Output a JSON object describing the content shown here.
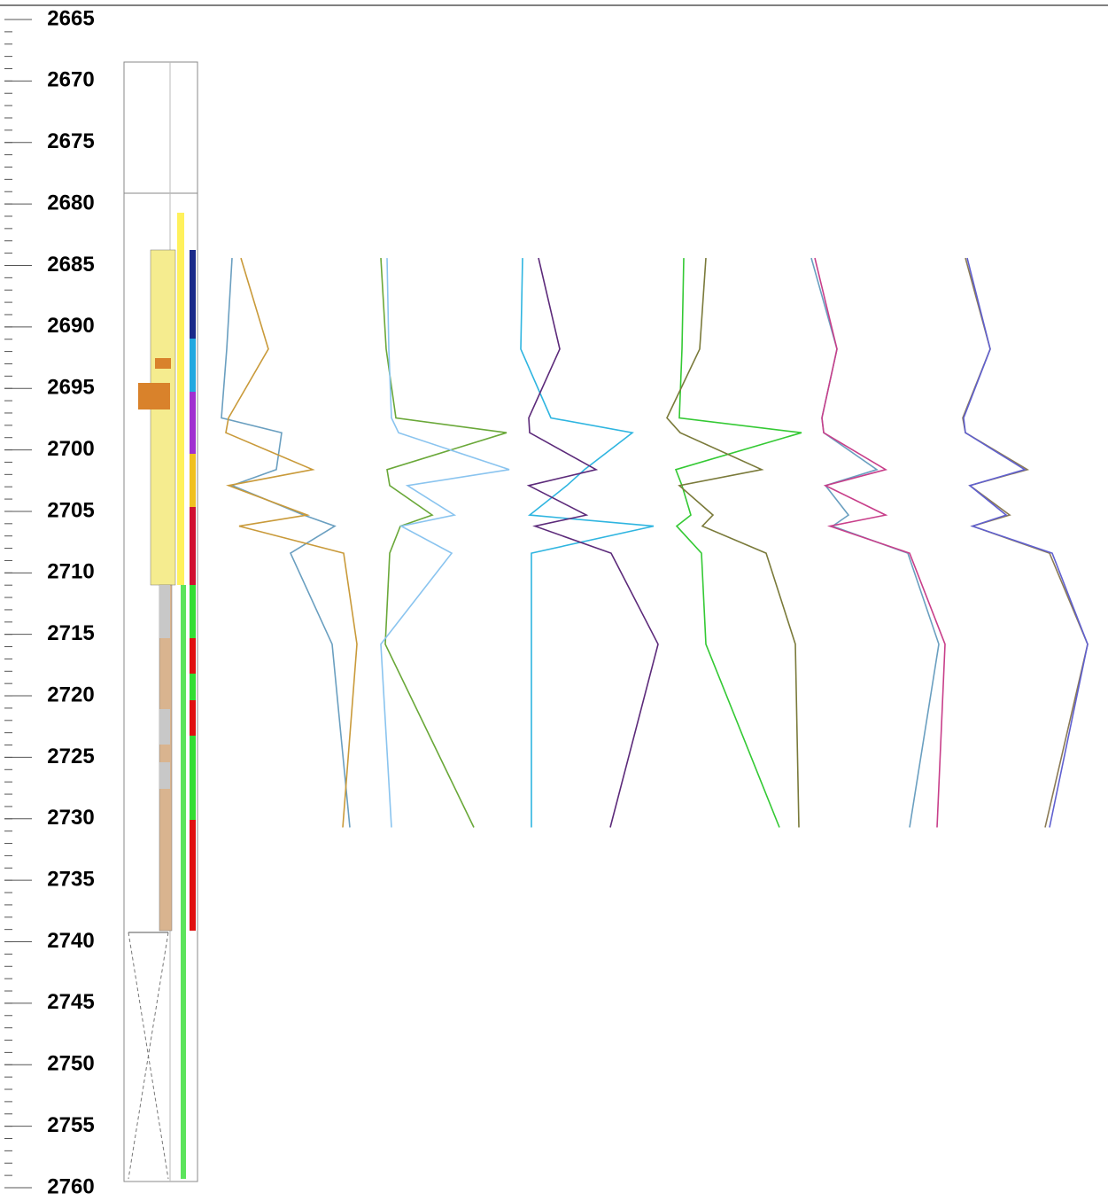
{
  "chart_data": {
    "type": "line",
    "ylim": [
      2665,
      2760
    ],
    "yticks": [
      2665,
      2670,
      2675,
      2680,
      2685,
      2690,
      2695,
      2700,
      2705,
      2710,
      2715,
      2720,
      2725,
      2730,
      2735,
      2740,
      2745,
      2750,
      2755,
      2760
    ],
    "yminor_step": 1,
    "y_inverted": true,
    "depths": [
      2684.4,
      2691.8,
      2697.4,
      2698.6,
      2701.6,
      2702.9,
      2705.3,
      2706.2,
      2708.4,
      2715.8,
      2730.7
    ],
    "panels": [
      {
        "xlim": [
          0,
          160
        ],
        "series": [
          {
            "color": "#6a9fc0",
            "values": [
              17,
              11,
              5,
              73,
              67,
              17,
              98,
              133,
              83,
              130,
              150
            ]
          },
          {
            "color": "#c99a3a",
            "values": [
              27,
              58,
              13,
              10,
              108,
              13,
              102,
              25,
              143,
              158,
              142
            ]
          }
        ]
      },
      {
        "xlim": [
          0,
          160
        ],
        "series": [
          {
            "color": "#6aa839",
            "values": [
              17,
              23,
              34,
              159,
              24,
              27,
              75,
              39,
              27,
              22,
              122
            ]
          },
          {
            "color": "#8ac4ef",
            "values": [
              24,
              26,
              29,
              37,
              162,
              47,
              100,
              40,
              97,
              17,
              29
            ]
          }
        ]
      },
      {
        "xlim": [
          0,
          160
        ],
        "series": [
          {
            "color": "#2fb5e0",
            "values": [
              9,
              7,
              41,
              133,
              79,
              59,
              17,
              157,
              19,
              19,
              19
            ]
          },
          {
            "color": "#5c2a7a",
            "values": [
              27,
              51,
              16,
              17,
              92,
              16,
              81,
              23,
              109,
              162,
              108
            ]
          }
        ]
      },
      {
        "xlim": [
          0,
          160
        ],
        "series": [
          {
            "color": "#34c934",
            "values": [
              23,
              21,
              18,
              156,
              14,
              21,
              31,
              15,
              43,
              48,
              131
            ]
          },
          {
            "color": "#7a7a3a",
            "values": [
              48,
              41,
              4,
              19,
              111,
              18,
              56,
              44,
              116,
              149,
              153
            ]
          }
        ]
      },
      {
        "xlim": [
          0,
          160
        ],
        "series": [
          {
            "color": "#6a9fc0",
            "values": [
              -1,
              28,
              11,
              13,
              73,
              15,
              41,
              23,
              108,
              143,
              110
            ]
          },
          {
            "color": "#c83f8a",
            "values": [
              3,
              28,
              11,
              13,
              83,
              15,
              83,
              20,
              110,
              150,
              141
            ]
          }
        ]
      },
      {
        "xlim": [
          0,
          160
        ],
        "series": [
          {
            "color": "#8a7a55",
            "values": [
              5,
              33,
              2,
              5,
              75,
              10,
              55,
              13,
              100,
              143,
              95
            ]
          },
          {
            "color": "#6060d0",
            "values": [
              7,
              33,
              3,
              5,
              72,
              10,
              51,
              13,
              103,
              143,
              100
            ]
          }
        ]
      }
    ]
  }
}
